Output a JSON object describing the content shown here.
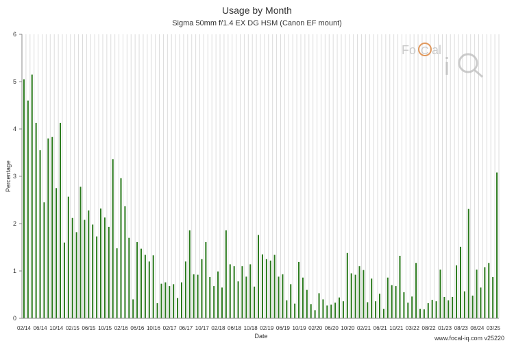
{
  "chart_data": {
    "type": "bar",
    "title": "Usage by Month",
    "subtitle": "Sigma 50mm f/1.4 EX DG HSM (Canon EF mount)",
    "xlabel": "Date",
    "ylabel": "Percentage",
    "ylim": [
      0,
      6
    ],
    "yticks": [
      0,
      1,
      2,
      3,
      4,
      5,
      6
    ],
    "grid": "vertical lines at each month",
    "bar_color": "#2a7a1c",
    "x_tick_labels": [
      "02/14",
      "06/14",
      "10/14",
      "02/15",
      "06/15",
      "10/15",
      "02/16",
      "06/16",
      "10/16",
      "02/17",
      "06/17",
      "10/17",
      "02/18",
      "06/18",
      "10/18",
      "02/19",
      "06/19",
      "10/19",
      "02/20",
      "06/20",
      "10/20",
      "02/21",
      "06/21",
      "10/21",
      "03/22",
      "08/22",
      "01/23",
      "08/23",
      "08/24",
      "03/25"
    ],
    "values": [
      5.05,
      4.6,
      5.15,
      4.13,
      3.55,
      2.45,
      3.8,
      3.83,
      2.75,
      4.13,
      1.6,
      2.57,
      2.12,
      1.82,
      2.78,
      2.08,
      2.28,
      1.98,
      1.73,
      2.32,
      2.13,
      1.93,
      3.36,
      1.48,
      2.96,
      2.37,
      1.7,
      0.4,
      1.61,
      1.47,
      1.34,
      1.2,
      1.33,
      0.32,
      0.73,
      0.76,
      0.68,
      0.72,
      0.43,
      0.76,
      1.2,
      1.86,
      0.93,
      0.92,
      1.25,
      1.61,
      0.87,
      0.68,
      0.99,
      0.65,
      1.86,
      1.14,
      1.1,
      0.78,
      1.1,
      0.88,
      1.14,
      0.67,
      1.76,
      1.35,
      1.25,
      1.22,
      1.34,
      0.88,
      0.93,
      0.38,
      0.72,
      0.31,
      1.19,
      0.86,
      0.6,
      0.3,
      0.17,
      0.53,
      0.4,
      0.27,
      0.29,
      0.33,
      0.44,
      0.36,
      1.38,
      0.95,
      0.92,
      1.1,
      1.02,
      0.34,
      0.84,
      0.36,
      0.52,
      0.2,
      0.86,
      0.7,
      0.68,
      1.32,
      0.55,
      0.33,
      0.46,
      1.17,
      0.2,
      0.19,
      0.32,
      0.39,
      0.36,
      1.03,
      0.45,
      0.38,
      0.45,
      1.12,
      1.51,
      0.57,
      2.31,
      0.48,
      1.03,
      0.65,
      1.08,
      1.17,
      0.87,
      3.08
    ]
  },
  "watermark": {
    "brand_text": "FoCal iQ",
    "accent_color": "#d97a2b"
  },
  "footer": {
    "credit": "www.focal-iq.com  v25220"
  }
}
